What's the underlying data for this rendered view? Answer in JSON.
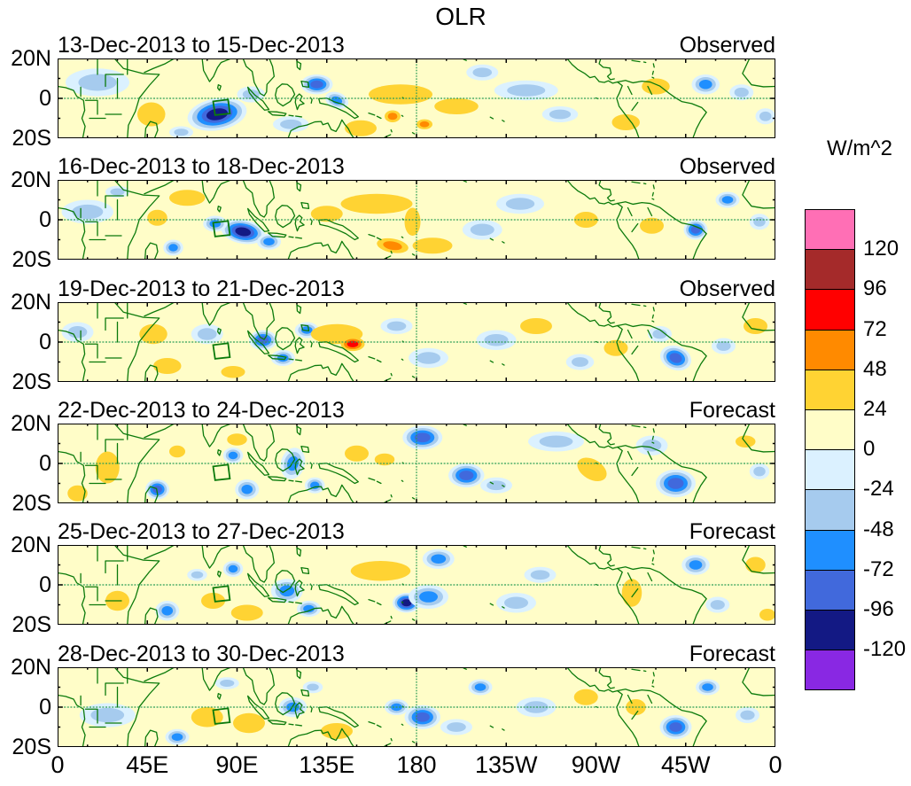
{
  "title": "OLR",
  "units_label": "W/m^2",
  "axis": {
    "x_tick_labels": [
      "0",
      "45E",
      "90E",
      "135E",
      "180",
      "135W",
      "90W",
      "45W",
      "0"
    ],
    "y_tick_labels": [
      "20N",
      "0",
      "20S"
    ]
  },
  "colorbar": {
    "title": "W/m^2",
    "labels": [
      "120",
      "96",
      "72",
      "48",
      "24",
      "0",
      "-24",
      "-48",
      "-72",
      "-96",
      "-120"
    ],
    "colors": [
      "#ff6fb5",
      "#a52a2a",
      "#ff0000",
      "#ff8a00",
      "#ffd333",
      "#fffdc8",
      "#dbf1ff",
      "#a6cbee",
      "#1f8fff",
      "#4169dc",
      "#131984",
      "#8928e3"
    ]
  },
  "colors": {
    "background": "#fffdc8",
    "coast_green": "#0b7a0b",
    "dashed_green": "#2e9e57",
    "palette_pos": [
      "#ffd333",
      "#ff8a00",
      "#ff0000",
      "#a52a2a",
      "#ff6fb5"
    ],
    "palette_neg": [
      "#dbf1ff",
      "#a6cbee",
      "#1f8fff",
      "#4169dc",
      "#131984",
      "#8928e3"
    ]
  },
  "chart_data": {
    "type": "heatmap",
    "subtype": "filled_contour_anomaly_maps",
    "title": "OLR",
    "units": "W/m^2",
    "lon_range_deg_east": [
      0,
      360
    ],
    "lat_range_deg": [
      -20,
      20
    ],
    "contour_interval": 24,
    "colorbar_levels": [
      120,
      96,
      72,
      48,
      24,
      0,
      -24,
      -48,
      -72,
      -96,
      -120
    ],
    "anomaly_format": [
      "lon_deg_east",
      "lat_deg",
      "peak_wm2",
      "radius_lon_deg",
      "radius_lat_deg",
      "rotation_deg"
    ],
    "panels": [
      {
        "date_range": "13-Dec-2013 to 15-Dec-2013",
        "type_label": "Observed",
        "anomalies": [
          [
            20,
            8,
            -30,
            16,
            7,
            0
          ],
          [
            47,
            -8,
            38,
            7,
            6,
            0
          ],
          [
            80,
            -8,
            -105,
            15,
            8,
            -10
          ],
          [
            97,
            2,
            -45,
            7,
            4,
            0
          ],
          [
            62,
            -17,
            -40,
            6,
            3,
            0
          ],
          [
            130,
            7,
            -75,
            8,
            5,
            0
          ],
          [
            140,
            -1,
            -55,
            6,
            4,
            20
          ],
          [
            117,
            -13,
            -35,
            9,
            4,
            0
          ],
          [
            152,
            -15,
            38,
            8,
            4,
            0
          ],
          [
            172,
            2,
            42,
            16,
            5,
            0
          ],
          [
            168,
            -9,
            58,
            4,
            3,
            0
          ],
          [
            184,
            -13,
            52,
            4,
            2.5,
            0
          ],
          [
            200,
            -4,
            36,
            11,
            4,
            0
          ],
          [
            213,
            13,
            -40,
            8,
            4,
            0
          ],
          [
            235,
            4,
            -32,
            16,
            5,
            0
          ],
          [
            252,
            -8,
            -30,
            9,
            4,
            0
          ],
          [
            285,
            -12,
            30,
            7,
            4,
            0
          ],
          [
            300,
            6,
            32,
            7,
            4,
            0
          ],
          [
            325,
            7,
            -68,
            7,
            5,
            0
          ],
          [
            343,
            3,
            -45,
            6,
            4,
            0
          ],
          [
            355,
            -9,
            -30,
            5,
            4,
            0
          ]
        ]
      },
      {
        "date_range": "16-Dec-2013 to 18-Dec-2013",
        "type_label": "Observed",
        "anomalies": [
          [
            15,
            4,
            -32,
            13,
            6,
            0
          ],
          [
            30,
            14,
            -40,
            6,
            3,
            0
          ],
          [
            50,
            1,
            30,
            5,
            4,
            0
          ],
          [
            65,
            11,
            36,
            9,
            4,
            0
          ],
          [
            58,
            -14,
            -50,
            5,
            4,
            0
          ],
          [
            93,
            -6,
            -112,
            11,
            6,
            10
          ],
          [
            79,
            -2,
            -55,
            6,
            4,
            0
          ],
          [
            106,
            -11,
            -48,
            6,
            4,
            0
          ],
          [
            135,
            3,
            40,
            8,
            4,
            0
          ],
          [
            160,
            8,
            46,
            18,
            5,
            0
          ],
          [
            178,
            -1,
            40,
            4,
            7,
            0
          ],
          [
            168,
            -13,
            68,
            8,
            3.5,
            10
          ],
          [
            188,
            -13,
            44,
            10,
            4,
            0
          ],
          [
            213,
            -5,
            -32,
            10,
            5,
            0
          ],
          [
            232,
            8,
            -32,
            12,
            5,
            0
          ],
          [
            265,
            0,
            30,
            6,
            4,
            0
          ],
          [
            298,
            -3,
            30,
            6,
            4,
            0
          ],
          [
            320,
            -5,
            -78,
            6,
            5,
            0
          ],
          [
            336,
            10,
            -52,
            6,
            4,
            0
          ],
          [
            352,
            -1,
            -32,
            5,
            4,
            0
          ]
        ]
      },
      {
        "date_range": "19-Dec-2013 to 21-Dec-2013",
        "type_label": "Observed",
        "anomalies": [
          [
            10,
            5,
            -35,
            8,
            5,
            0
          ],
          [
            48,
            4,
            40,
            7,
            5,
            0
          ],
          [
            55,
            -12,
            36,
            7,
            4,
            0
          ],
          [
            75,
            4,
            -32,
            8,
            5,
            0
          ],
          [
            88,
            -15,
            32,
            6,
            3,
            0
          ],
          [
            103,
            1,
            -78,
            7,
            5,
            0
          ],
          [
            113,
            -8,
            -58,
            6,
            4,
            0
          ],
          [
            125,
            6,
            -48,
            6,
            4,
            0
          ],
          [
            140,
            4,
            44,
            13,
            5,
            0
          ],
          [
            148,
            -1,
            72,
            6,
            3.5,
            0
          ],
          [
            170,
            8,
            -42,
            8,
            4,
            0
          ],
          [
            186,
            -8,
            -40,
            10,
            5,
            0
          ],
          [
            220,
            1,
            -32,
            10,
            5,
            0
          ],
          [
            240,
            8,
            30,
            8,
            4,
            0
          ],
          [
            262,
            -10,
            -30,
            7,
            4,
            0
          ],
          [
            280,
            -3,
            30,
            6,
            4,
            0
          ],
          [
            302,
            4,
            -40,
            6,
            4,
            0
          ],
          [
            310,
            -8,
            -88,
            8,
            6,
            20
          ],
          [
            334,
            -2,
            -32,
            6,
            4,
            0
          ],
          [
            350,
            8,
            36,
            6,
            4,
            0
          ]
        ]
      },
      {
        "date_range": "22-Dec-2013 to 24-Dec-2013",
        "type_label": "Forecast",
        "anomalies": [
          [
            25,
            -2,
            42,
            6,
            8,
            0
          ],
          [
            10,
            -15,
            34,
            5,
            4,
            0
          ],
          [
            50,
            -13,
            -82,
            6,
            5,
            0
          ],
          [
            88,
            4,
            -48,
            5,
            4,
            0
          ],
          [
            95,
            -13,
            -58,
            6,
            5,
            0
          ],
          [
            90,
            12,
            34,
            5,
            3,
            0
          ],
          [
            118,
            0,
            -68,
            6,
            8,
            15
          ],
          [
            129,
            -11,
            -48,
            5,
            4,
            0
          ],
          [
            150,
            5,
            40,
            6,
            4,
            0
          ],
          [
            164,
            2,
            38,
            5,
            3,
            0
          ],
          [
            183,
            13,
            -88,
            10,
            6,
            0
          ],
          [
            205,
            -6,
            -84,
            9,
            6,
            0
          ],
          [
            220,
            -11,
            -40,
            8,
            4,
            0
          ],
          [
            250,
            11,
            -36,
            14,
            5,
            0
          ],
          [
            268,
            -3,
            44,
            8,
            5,
            30
          ],
          [
            310,
            -10,
            -92,
            10,
            7,
            0
          ],
          [
            298,
            9,
            -40,
            8,
            5,
            0
          ],
          [
            352,
            -4,
            -32,
            5,
            4,
            0
          ],
          [
            345,
            11,
            34,
            5,
            3,
            0
          ],
          [
            60,
            6,
            30,
            4,
            3,
            0
          ]
        ]
      },
      {
        "date_range": "25-Dec-2013 to 27-Dec-2013",
        "type_label": "Forecast",
        "anomalies": [
          [
            30,
            -8,
            34,
            6,
            5,
            0
          ],
          [
            55,
            -13,
            -68,
            6,
            5,
            0
          ],
          [
            70,
            5,
            -40,
            5,
            3,
            0
          ],
          [
            78,
            -8,
            40,
            6,
            4,
            0
          ],
          [
            95,
            -14,
            40,
            8,
            4,
            0
          ],
          [
            88,
            8,
            -48,
            5,
            4,
            0
          ],
          [
            115,
            -3,
            -68,
            8,
            6,
            0
          ],
          [
            126,
            -12,
            -48,
            6,
            4,
            0
          ],
          [
            152,
            7,
            58,
            4,
            3,
            0
          ],
          [
            162,
            7,
            44,
            15,
            5,
            0
          ],
          [
            175,
            -9,
            -112,
            7,
            5,
            0
          ],
          [
            186,
            -6,
            -68,
            10,
            6,
            0
          ],
          [
            191,
            13,
            -68,
            8,
            5,
            0
          ],
          [
            230,
            -9,
            -40,
            10,
            5,
            0
          ],
          [
            242,
            5,
            -32,
            8,
            4,
            0
          ],
          [
            288,
            -4,
            44,
            5,
            7,
            0
          ],
          [
            320,
            10,
            -68,
            7,
            5,
            0
          ],
          [
            331,
            -10,
            -34,
            6,
            4,
            0
          ],
          [
            350,
            10,
            34,
            5,
            4,
            0
          ],
          [
            356,
            -15,
            30,
            4,
            3,
            0
          ]
        ]
      },
      {
        "date_range": "28-Dec-2013 to 30-Dec-2013",
        "type_label": "Forecast",
        "anomalies": [
          [
            25,
            -4,
            -30,
            14,
            6,
            0
          ],
          [
            60,
            -15,
            -58,
            6,
            4,
            0
          ],
          [
            75,
            -5,
            44,
            8,
            5,
            0
          ],
          [
            96,
            -8,
            44,
            8,
            5,
            0
          ],
          [
            85,
            12,
            -40,
            6,
            3,
            0
          ],
          [
            118,
            0,
            -58,
            7,
            5,
            0
          ],
          [
            128,
            10,
            -40,
            5,
            3,
            0
          ],
          [
            140,
            -12,
            34,
            8,
            4,
            0
          ],
          [
            170,
            0,
            -48,
            6,
            4,
            0
          ],
          [
            183,
            -5,
            -92,
            9,
            6,
            0
          ],
          [
            200,
            -10,
            -40,
            8,
            4,
            0
          ],
          [
            212,
            10,
            -48,
            6,
            4,
            0
          ],
          [
            240,
            0,
            -30,
            10,
            5,
            0
          ],
          [
            265,
            5,
            30,
            6,
            4,
            0
          ],
          [
            290,
            0,
            34,
            5,
            4,
            0
          ],
          [
            310,
            -10,
            -78,
            8,
            6,
            0
          ],
          [
            326,
            10,
            -58,
            6,
            4,
            0
          ],
          [
            346,
            -4,
            -30,
            6,
            4,
            0
          ]
        ]
      }
    ]
  }
}
